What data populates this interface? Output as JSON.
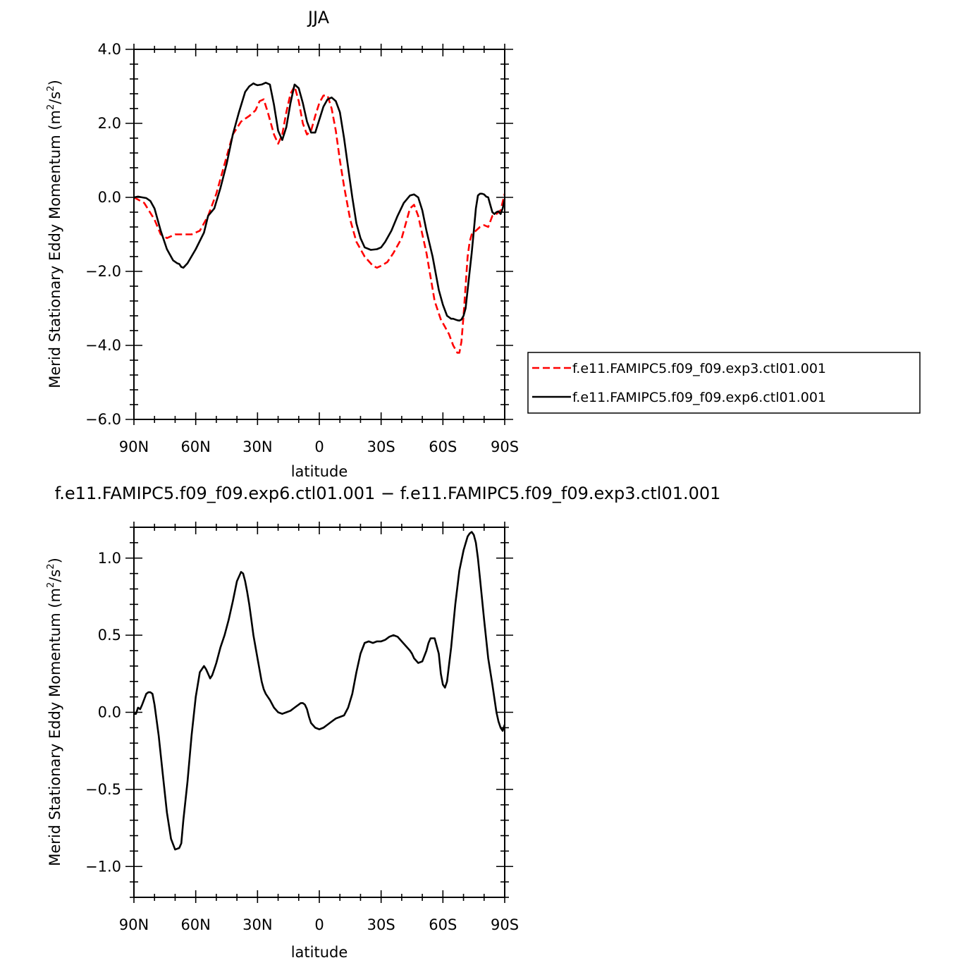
{
  "chart_data": [
    {
      "type": "line",
      "title": "JJA",
      "xlabel": "latitude",
      "ylabel": "Merid Stationary Eddy Momentum (m²/s²)",
      "xlim": [
        90,
        -90
      ],
      "ylim": [
        -6.0,
        4.0
      ],
      "xticks": [
        90,
        60,
        30,
        0,
        -30,
        -60,
        -90
      ],
      "xtick_labels": [
        "90N",
        "60N",
        "30N",
        "0",
        "30S",
        "60S",
        "90S"
      ],
      "yticks": [
        -6.0,
        -4.0,
        -2.0,
        0.0,
        2.0,
        4.0
      ],
      "ytick_labels": [
        "−6.0",
        "−4.0",
        "−2.0",
        "0.0",
        "2.0",
        "4.0"
      ],
      "legend": {
        "placement": "right"
      },
      "series": [
        {
          "name": "f.e11.FAMIPC5.f09_f09.exp3.ctl01.001",
          "color": "#ff0000",
          "dash": "dashed",
          "x": [
            90,
            85,
            80,
            77,
            74,
            70,
            66,
            62,
            58,
            54,
            50,
            46,
            42,
            38,
            34,
            31,
            29,
            27,
            25,
            22,
            20,
            18,
            16,
            14,
            12,
            10,
            8,
            6,
            4,
            2,
            0,
            -2,
            -4,
            -6,
            -8,
            -10,
            -12,
            -15,
            -18,
            -22,
            -26,
            -28,
            -30,
            -33,
            -36,
            -40,
            -44,
            -46,
            -48,
            -52,
            -56,
            -59,
            -61,
            -63,
            -65,
            -67,
            -68,
            -69,
            -70,
            -72,
            -73,
            -74,
            -76,
            -78,
            -80,
            -82,
            -84,
            -86,
            -88,
            -90
          ],
          "y": [
            0.0,
            -0.15,
            -0.6,
            -1.0,
            -1.1,
            -1.0,
            -1.0,
            -1.0,
            -0.9,
            -0.5,
            0.1,
            0.9,
            1.7,
            2.05,
            2.2,
            2.35,
            2.6,
            2.65,
            2.3,
            1.7,
            1.45,
            1.7,
            2.3,
            2.8,
            3.0,
            2.6,
            2.0,
            1.7,
            1.8,
            2.2,
            2.55,
            2.75,
            2.75,
            2.4,
            1.8,
            1.0,
            0.3,
            -0.6,
            -1.2,
            -1.6,
            -1.85,
            -1.9,
            -1.85,
            -1.75,
            -1.5,
            -1.1,
            -0.3,
            -0.2,
            -0.5,
            -1.5,
            -2.8,
            -3.3,
            -3.5,
            -3.7,
            -4.0,
            -4.2,
            -4.2,
            -3.9,
            -3.2,
            -1.6,
            -1.2,
            -1.0,
            -0.9,
            -0.8,
            -0.75,
            -0.8,
            -0.5,
            -0.45,
            -0.35,
            0.1
          ]
        },
        {
          "name": "f.e11.FAMIPC5.f09_f09.exp6.ctl01.001",
          "color": "#000000",
          "dash": "solid",
          "x": [
            90,
            88,
            86,
            84,
            82,
            80,
            77,
            74,
            71,
            69,
            68,
            67,
            66,
            64,
            60,
            56,
            54,
            51,
            48,
            45,
            42,
            39,
            36,
            34,
            32,
            31,
            30,
            28,
            26,
            24,
            22,
            20,
            18,
            16,
            14,
            12,
            10,
            8,
            6,
            4,
            2,
            0,
            -2,
            -4,
            -6,
            -8,
            -10,
            -12,
            -14,
            -16,
            -18,
            -20,
            -22,
            -25,
            -28,
            -30,
            -32,
            -35,
            -38,
            -41,
            -44,
            -46,
            -48,
            -50,
            -52,
            -55,
            -58,
            -60,
            -62,
            -64,
            -65,
            -66,
            -67,
            -68,
            -69,
            -70,
            -71,
            -72,
            -73,
            -74,
            -75,
            -76,
            -77,
            -78,
            -79,
            -80,
            -81,
            -82,
            -83,
            -84,
            -85,
            -86,
            -87,
            -88,
            -89,
            -90
          ],
          "y": [
            0.0,
            0.02,
            0.0,
            -0.02,
            -0.1,
            -0.3,
            -0.9,
            -1.4,
            -1.7,
            -1.78,
            -1.8,
            -1.88,
            -1.9,
            -1.78,
            -1.4,
            -0.95,
            -0.5,
            -0.3,
            0.25,
            0.9,
            1.7,
            2.3,
            2.85,
            3.0,
            3.08,
            3.05,
            3.03,
            3.05,
            3.1,
            3.05,
            2.5,
            1.8,
            1.55,
            1.9,
            2.55,
            3.05,
            2.95,
            2.55,
            2.05,
            1.75,
            1.75,
            2.1,
            2.45,
            2.65,
            2.7,
            2.6,
            2.3,
            1.6,
            0.8,
            0.0,
            -0.7,
            -1.1,
            -1.35,
            -1.42,
            -1.4,
            -1.35,
            -1.2,
            -0.9,
            -0.5,
            -0.15,
            0.05,
            0.08,
            0.0,
            -0.35,
            -0.9,
            -1.6,
            -2.5,
            -2.9,
            -3.2,
            -3.28,
            -3.28,
            -3.3,
            -3.32,
            -3.33,
            -3.3,
            -3.2,
            -3.0,
            -2.5,
            -2.0,
            -1.5,
            -0.9,
            -0.3,
            0.05,
            0.1,
            0.1,
            0.08,
            0.02,
            0.0,
            -0.2,
            -0.4,
            -0.45,
            -0.4,
            -0.38,
            -0.45,
            -0.3,
            -0.05
          ]
        }
      ]
    },
    {
      "type": "line",
      "title": "f.e11.FAMIPC5.f09_f09.exp6.ctl01.001 − f.e11.FAMIPC5.f09_f09.exp3.ctl01.001",
      "xlabel": "latitude",
      "ylabel": "Merid Stationary Eddy Momentum (m²/s²)",
      "xlim": [
        90,
        -90
      ],
      "ylim": [
        -1.2,
        1.2
      ],
      "xticks": [
        90,
        60,
        30,
        0,
        -30,
        -60,
        -90
      ],
      "xtick_labels": [
        "90N",
        "60N",
        "30N",
        "0",
        "30S",
        "60S",
        "90S"
      ],
      "yticks": [
        -1.0,
        -0.5,
        0.0,
        0.5,
        1.0
      ],
      "ytick_labels": [
        "−1.0",
        "−0.5",
        "0.0",
        "0.5",
        "1.0"
      ],
      "series": [
        {
          "name": "",
          "color": "#000000",
          "dash": "solid",
          "x": [
            90,
            89,
            88,
            87,
            86,
            84,
            83,
            82,
            81,
            80,
            78,
            76,
            74,
            72,
            70,
            68,
            67,
            66,
            64,
            62,
            60,
            58,
            56,
            55,
            54,
            53,
            52,
            51,
            50,
            48,
            46,
            44,
            42,
            40,
            38,
            37,
            36,
            35,
            34,
            33,
            32,
            30,
            28,
            27,
            26,
            24,
            22,
            20,
            18,
            16,
            14,
            12,
            10,
            9,
            8,
            7,
            6,
            5,
            4,
            2,
            0,
            -2,
            -4,
            -6,
            -8,
            -10,
            -12,
            -14,
            -16,
            -18,
            -20,
            -22,
            -24,
            -26,
            -28,
            -30,
            -32,
            -34,
            -36,
            -38,
            -40,
            -42,
            -44,
            -45,
            -46,
            -48,
            -50,
            -52,
            -53,
            -54,
            -56,
            -58,
            -59,
            -60,
            -61,
            -62,
            -64,
            -66,
            -68,
            -70,
            -72,
            -73,
            -74,
            -75,
            -76,
            -77,
            -78,
            -80,
            -82,
            -84,
            -86,
            -87,
            -88,
            -89,
            -90
          ],
          "y": [
            -0.01,
            -0.01,
            0.03,
            0.02,
            0.05,
            0.12,
            0.13,
            0.13,
            0.12,
            0.05,
            -0.15,
            -0.4,
            -0.65,
            -0.82,
            -0.89,
            -0.88,
            -0.85,
            -0.7,
            -0.45,
            -0.15,
            0.1,
            0.26,
            0.3,
            0.28,
            0.25,
            0.22,
            0.24,
            0.28,
            0.32,
            0.42,
            0.5,
            0.6,
            0.72,
            0.85,
            0.91,
            0.9,
            0.85,
            0.78,
            0.7,
            0.6,
            0.5,
            0.35,
            0.2,
            0.15,
            0.12,
            0.08,
            0.03,
            0.0,
            -0.01,
            0.0,
            0.01,
            0.03,
            0.05,
            0.06,
            0.06,
            0.05,
            0.02,
            -0.03,
            -0.07,
            -0.1,
            -0.11,
            -0.1,
            -0.08,
            -0.06,
            -0.04,
            -0.03,
            -0.02,
            0.03,
            0.12,
            0.26,
            0.38,
            0.45,
            0.46,
            0.45,
            0.46,
            0.46,
            0.47,
            0.49,
            0.5,
            0.49,
            0.46,
            0.43,
            0.4,
            0.38,
            0.35,
            0.32,
            0.33,
            0.4,
            0.45,
            0.48,
            0.48,
            0.38,
            0.25,
            0.18,
            0.16,
            0.2,
            0.42,
            0.7,
            0.92,
            1.05,
            1.14,
            1.16,
            1.17,
            1.15,
            1.1,
            1.0,
            0.87,
            0.6,
            0.35,
            0.18,
            0.0,
            -0.06,
            -0.1,
            -0.12,
            -0.08
          ]
        }
      ]
    }
  ]
}
